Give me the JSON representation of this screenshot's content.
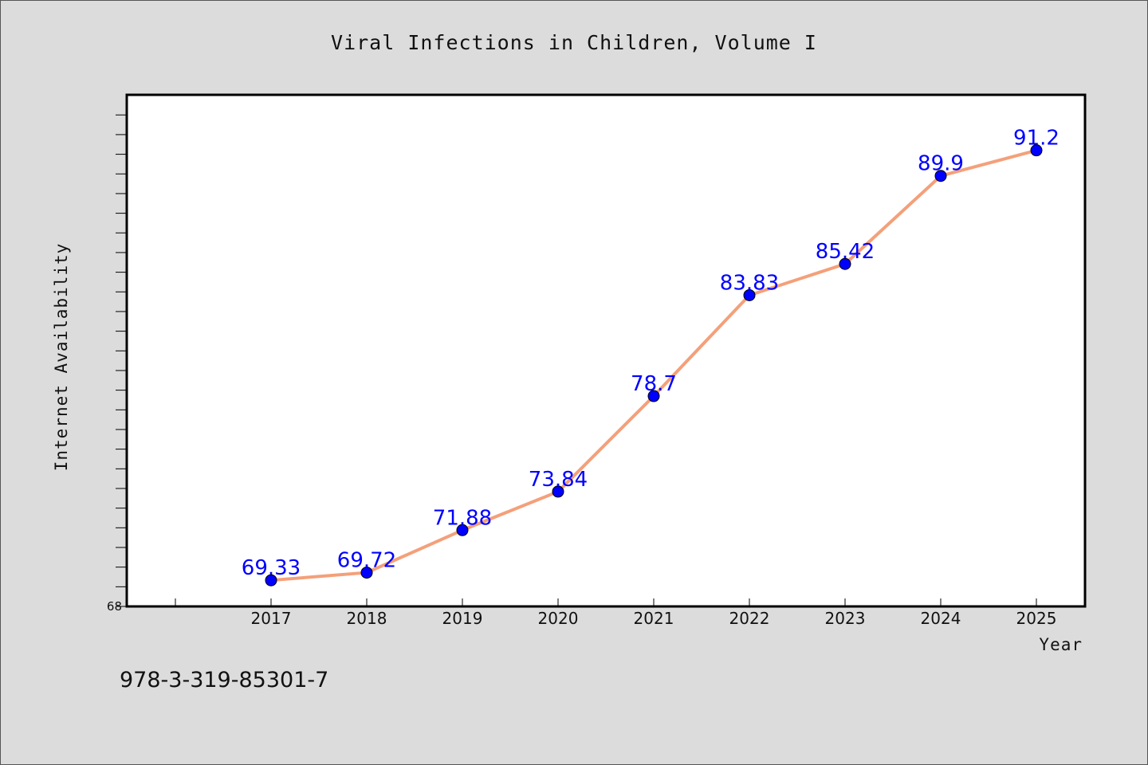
{
  "chart_data": {
    "type": "line",
    "title": "Viral Infections in Children, Volume I",
    "xlabel": "Year",
    "ylabel": "Internet Availability",
    "categories": [
      "2017",
      "2018",
      "2019",
      "2020",
      "2021",
      "2022",
      "2023",
      "2024",
      "2025"
    ],
    "values": [
      69.33,
      69.72,
      71.88,
      73.84,
      78.7,
      83.83,
      85.42,
      89.9,
      91.2
    ],
    "data_labels": [
      "69.33",
      "69.72",
      "71.88",
      "73.84",
      "78.7",
      "83.83",
      "85.42",
      "89.9",
      "91.2"
    ],
    "y_tick_labels": [
      "68"
    ],
    "ylim": [
      68,
      94
    ],
    "grid": false,
    "line_color": "#f4a07a",
    "marker_color": "#0000ff",
    "label_color": "#0000ff"
  },
  "footer": {
    "isbn": "978-3-319-85301-7"
  }
}
